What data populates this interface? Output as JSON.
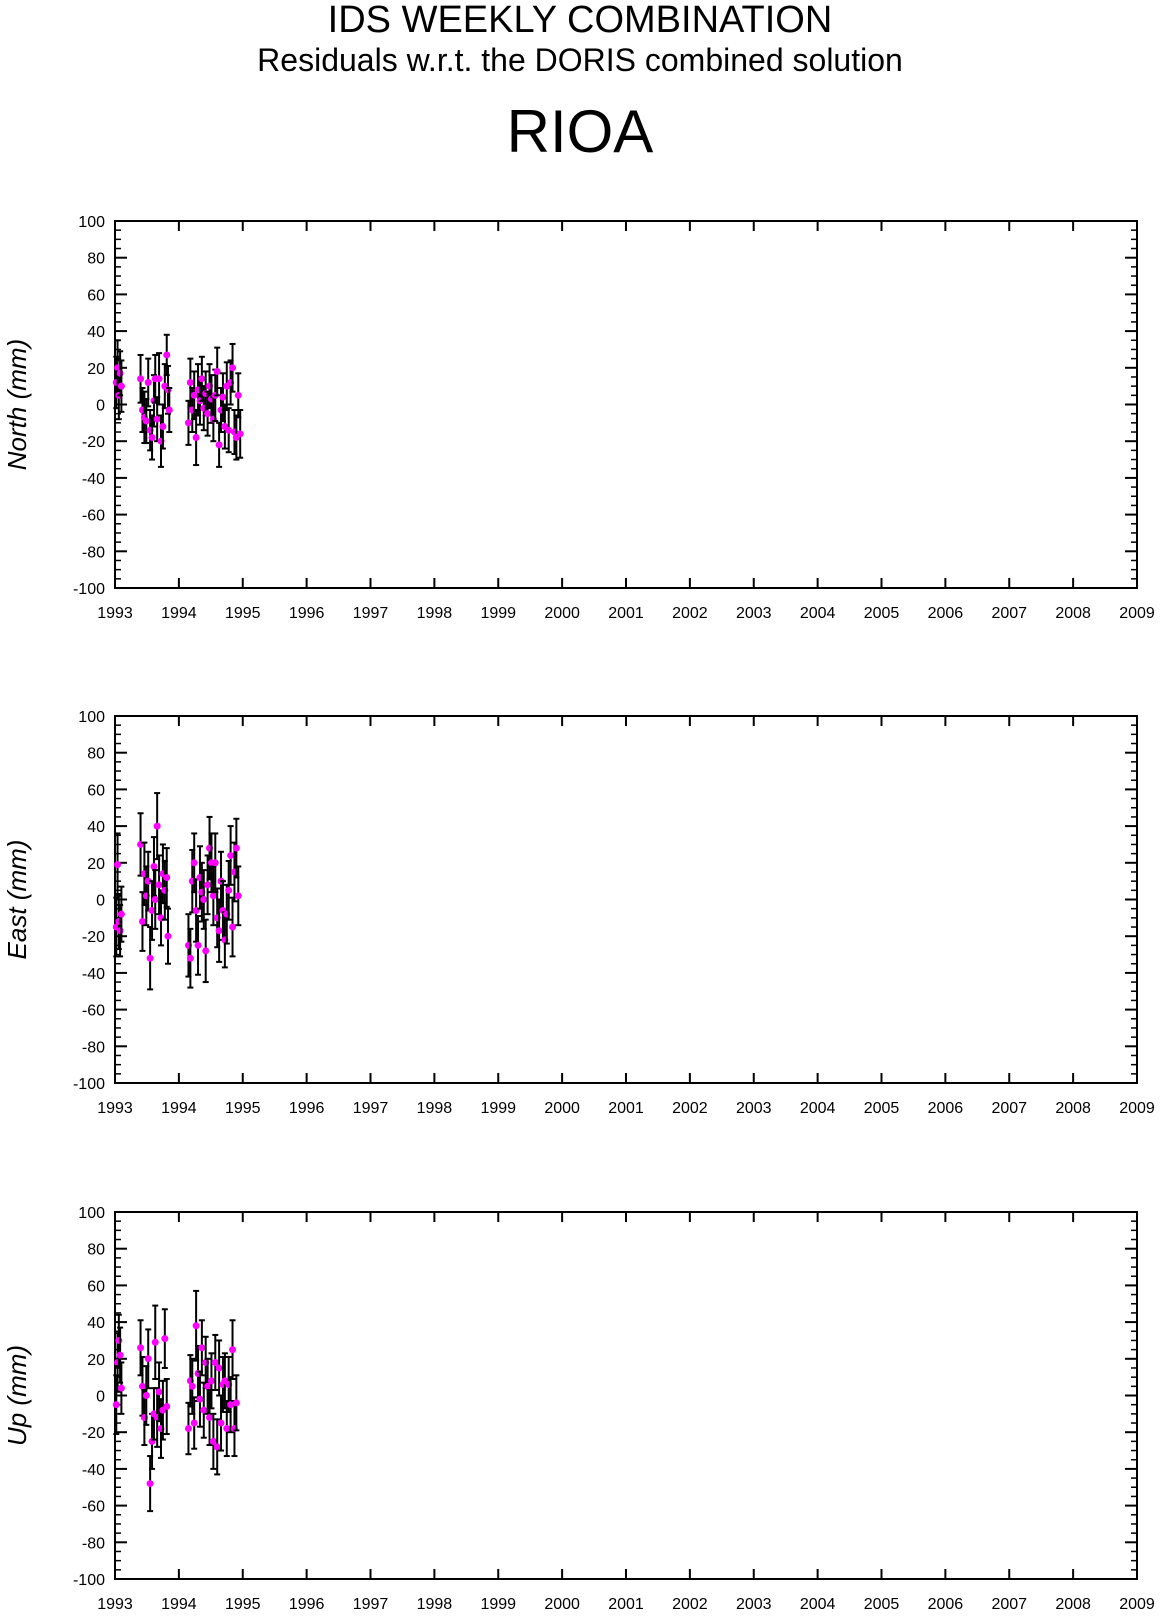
{
  "header": {
    "title": "IDS WEEKLY COMBINATION",
    "subtitle": "Residuals w.r.t. the DORIS combined solution",
    "station": "RIOA"
  },
  "colors": {
    "point": "#ff00ff",
    "errorbar": "#000000",
    "axis": "#000000"
  },
  "chart_data": [
    {
      "type": "scatter",
      "ylabel": "North (mm)",
      "xlim": [
        1993,
        2009
      ],
      "ylim": [
        -100,
        100
      ],
      "xticks": [
        1993,
        1994,
        1995,
        1996,
        1997,
        1998,
        1999,
        2000,
        2001,
        2002,
        2003,
        2004,
        2005,
        2006,
        2007,
        2008,
        2009
      ],
      "yticks": [
        -100,
        -80,
        -60,
        -40,
        -20,
        0,
        20,
        40,
        60,
        80,
        100
      ],
      "points": [
        [
          1993.02,
          12,
          14
        ],
        [
          1993.04,
          20,
          15
        ],
        [
          1993.06,
          5,
          13
        ],
        [
          1993.08,
          17,
          12
        ],
        [
          1993.1,
          10,
          14
        ],
        [
          1993.4,
          14,
          13
        ],
        [
          1993.43,
          -3,
          12
        ],
        [
          1993.46,
          -7,
          14
        ],
        [
          1993.49,
          -9,
          12
        ],
        [
          1993.52,
          12,
          13
        ],
        [
          1993.55,
          -14,
          11
        ],
        [
          1993.58,
          -18,
          12
        ],
        [
          1993.61,
          2,
          14
        ],
        [
          1993.63,
          14,
          13
        ],
        [
          1993.66,
          -8,
          12
        ],
        [
          1993.69,
          14,
          14
        ],
        [
          1993.72,
          -20,
          14
        ],
        [
          1993.75,
          -12,
          12
        ],
        [
          1993.78,
          10,
          12
        ],
        [
          1993.81,
          27,
          11
        ],
        [
          1993.83,
          8,
          13
        ],
        [
          1993.85,
          -3,
          12
        ],
        [
          1994.15,
          -10,
          12
        ],
        [
          1994.18,
          12,
          13
        ],
        [
          1994.21,
          -3,
          12
        ],
        [
          1994.24,
          5,
          13
        ],
        [
          1994.27,
          -18,
          15
        ],
        [
          1994.3,
          8,
          14
        ],
        [
          1994.33,
          2,
          13
        ],
        [
          1994.36,
          14,
          12
        ],
        [
          1994.39,
          -2,
          12
        ],
        [
          1994.42,
          6,
          12
        ],
        [
          1994.45,
          -5,
          12
        ],
        [
          1994.48,
          10,
          12
        ],
        [
          1994.51,
          3,
          13
        ],
        [
          1994.54,
          -8,
          12
        ],
        [
          1994.57,
          5,
          14
        ],
        [
          1994.6,
          18,
          13
        ],
        [
          1994.63,
          -22,
          12
        ],
        [
          1994.66,
          -3,
          12
        ],
        [
          1994.69,
          4,
          13
        ],
        [
          1994.72,
          -12,
          12
        ],
        [
          1994.75,
          10,
          13
        ],
        [
          1994.78,
          -14,
          12
        ],
        [
          1994.81,
          12,
          12
        ],
        [
          1994.84,
          20,
          13
        ],
        [
          1994.87,
          -15,
          12
        ],
        [
          1994.9,
          -18,
          12
        ],
        [
          1994.93,
          5,
          12
        ],
        [
          1994.96,
          -16,
          13
        ]
      ]
    },
    {
      "type": "scatter",
      "ylabel": "East (mm)",
      "xlim": [
        1993,
        2009
      ],
      "ylim": [
        -100,
        100
      ],
      "xticks": [
        1993,
        1994,
        1995,
        1996,
        1997,
        1998,
        1999,
        2000,
        2001,
        2002,
        2003,
        2004,
        2005,
        2006,
        2007,
        2008,
        2009
      ],
      "yticks": [
        -100,
        -80,
        -60,
        -40,
        -20,
        0,
        20,
        40,
        60,
        80,
        100
      ],
      "points": [
        [
          1993.02,
          -15,
          16
        ],
        [
          1993.04,
          19,
          17
        ],
        [
          1993.06,
          -12,
          15
        ],
        [
          1993.08,
          -17,
          14
        ],
        [
          1993.1,
          -8,
          15
        ],
        [
          1993.4,
          30,
          17
        ],
        [
          1993.43,
          -12,
          16
        ],
        [
          1993.46,
          14,
          17
        ],
        [
          1993.49,
          2,
          16
        ],
        [
          1993.52,
          10,
          16
        ],
        [
          1993.55,
          -32,
          17
        ],
        [
          1993.58,
          -6,
          16
        ],
        [
          1993.61,
          18,
          16
        ],
        [
          1993.63,
          0,
          16
        ],
        [
          1993.66,
          40,
          18
        ],
        [
          1993.69,
          8,
          16
        ],
        [
          1993.72,
          -10,
          15
        ],
        [
          1993.75,
          14,
          16
        ],
        [
          1993.78,
          5,
          16
        ],
        [
          1993.81,
          12,
          16
        ],
        [
          1993.83,
          -20,
          15
        ],
        [
          1994.15,
          -25,
          17
        ],
        [
          1994.18,
          -32,
          16
        ],
        [
          1994.21,
          10,
          17
        ],
        [
          1994.24,
          20,
          16
        ],
        [
          1994.27,
          -6,
          17
        ],
        [
          1994.3,
          -25,
          16
        ],
        [
          1994.33,
          12,
          17
        ],
        [
          1994.36,
          4,
          16
        ],
        [
          1994.39,
          0,
          16
        ],
        [
          1994.42,
          -28,
          17
        ],
        [
          1994.45,
          8,
          16
        ],
        [
          1994.48,
          28,
          17
        ],
        [
          1994.51,
          20,
          16
        ],
        [
          1994.54,
          2,
          16
        ],
        [
          1994.57,
          20,
          16
        ],
        [
          1994.6,
          -10,
          16
        ],
        [
          1994.63,
          -17,
          17
        ],
        [
          1994.66,
          10,
          16
        ],
        [
          1994.69,
          -6,
          16
        ],
        [
          1994.72,
          -22,
          15
        ],
        [
          1994.75,
          -8,
          16
        ],
        [
          1994.78,
          5,
          16
        ],
        [
          1994.81,
          24,
          16
        ],
        [
          1994.84,
          -15,
          16
        ],
        [
          1994.87,
          15,
          16
        ],
        [
          1994.9,
          28,
          16
        ],
        [
          1994.93,
          2,
          16
        ]
      ]
    },
    {
      "type": "scatter",
      "ylabel": "Up (mm)",
      "xlim": [
        1993,
        2009
      ],
      "ylim": [
        -100,
        100
      ],
      "xticks": [
        1993,
        1994,
        1995,
        1996,
        1997,
        1998,
        1999,
        2000,
        2001,
        2002,
        2003,
        2004,
        2005,
        2006,
        2007,
        2008,
        2009
      ],
      "yticks": [
        -100,
        -80,
        -60,
        -40,
        -20,
        0,
        20,
        40,
        60,
        80,
        100
      ],
      "points": [
        [
          1993.02,
          -5,
          16
        ],
        [
          1993.04,
          18,
          16
        ],
        [
          1993.06,
          30,
          14
        ],
        [
          1993.08,
          22,
          15
        ],
        [
          1993.1,
          4,
          14
        ],
        [
          1993.4,
          26,
          15
        ],
        [
          1993.43,
          5,
          16
        ],
        [
          1993.46,
          -12,
          15
        ],
        [
          1993.49,
          0,
          16
        ],
        [
          1993.52,
          20,
          16
        ],
        [
          1993.55,
          -48,
          15
        ],
        [
          1993.58,
          -25,
          15
        ],
        [
          1993.61,
          -10,
          14
        ],
        [
          1993.63,
          29,
          20
        ],
        [
          1993.66,
          -12,
          16
        ],
        [
          1993.69,
          2,
          16
        ],
        [
          1993.72,
          -18,
          16
        ],
        [
          1993.75,
          -8,
          16
        ],
        [
          1993.78,
          31,
          16
        ],
        [
          1993.81,
          -6,
          15
        ],
        [
          1994.15,
          -18,
          14
        ],
        [
          1994.18,
          8,
          14
        ],
        [
          1994.21,
          5,
          15
        ],
        [
          1994.24,
          -15,
          14
        ],
        [
          1994.27,
          38,
          19
        ],
        [
          1994.3,
          12,
          15
        ],
        [
          1994.33,
          -2,
          15
        ],
        [
          1994.36,
          26,
          15
        ],
        [
          1994.39,
          -8,
          15
        ],
        [
          1994.42,
          18,
          14
        ],
        [
          1994.45,
          5,
          15
        ],
        [
          1994.48,
          -12,
          15
        ],
        [
          1994.51,
          8,
          15
        ],
        [
          1994.54,
          -25,
          15
        ],
        [
          1994.57,
          18,
          15
        ],
        [
          1994.6,
          -28,
          15
        ],
        [
          1994.63,
          15,
          15
        ],
        [
          1994.66,
          -15,
          15
        ],
        [
          1994.69,
          6,
          15
        ],
        [
          1994.72,
          8,
          15
        ],
        [
          1994.75,
          -18,
          15
        ],
        [
          1994.78,
          6,
          15
        ],
        [
          1994.81,
          -5,
          15
        ],
        [
          1994.84,
          25,
          16
        ],
        [
          1994.87,
          -18,
          15
        ],
        [
          1994.9,
          -4,
          15
        ]
      ]
    }
  ]
}
